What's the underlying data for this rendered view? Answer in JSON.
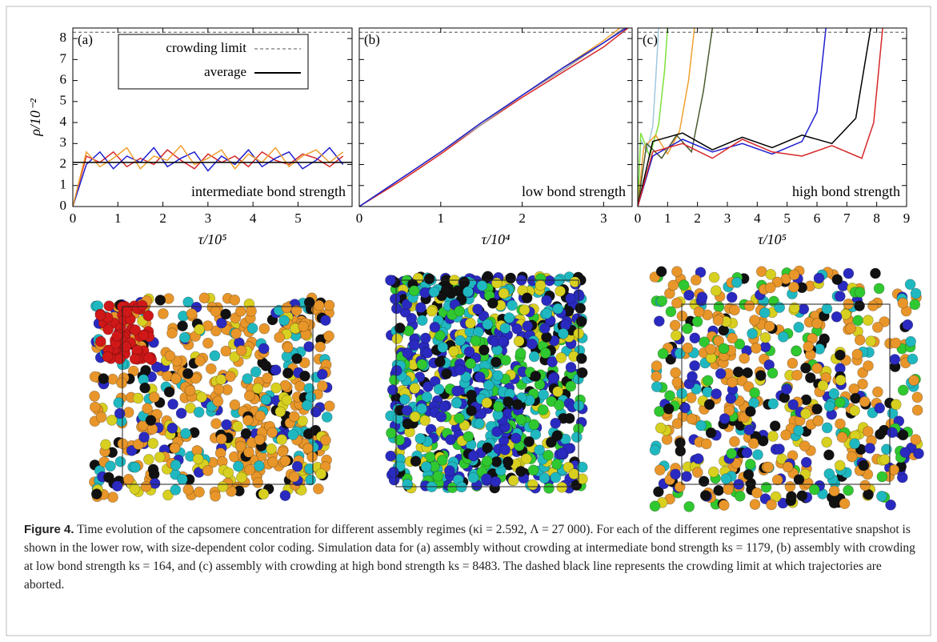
{
  "chart_data": [
    {
      "type": "line",
      "panel_label": "(a)",
      "annotation": "intermediate bond strength",
      "x_label": "τ/10⁵",
      "y_label": "ρ/10⁻²",
      "xlim": [
        0,
        6.2
      ],
      "ylim": [
        0,
        8.5
      ],
      "xticks": [
        0,
        1,
        2,
        3,
        4,
        5
      ],
      "yticks": [
        0,
        1,
        2,
        3,
        4,
        5,
        6,
        7,
        8
      ],
      "x": [
        0,
        0.3,
        0.6,
        0.9,
        1.2,
        1.5,
        1.8,
        2.1,
        2.4,
        2.7,
        3.0,
        3.3,
        3.6,
        3.9,
        4.2,
        4.5,
        4.8,
        5.1,
        5.4,
        5.7,
        6.0
      ],
      "series": [
        {
          "color": "#d62728",
          "values": [
            0,
            2.4,
            2.1,
            2.6,
            1.9,
            2.3,
            2.0,
            2.7,
            2.2,
            1.8,
            2.5,
            2.1,
            2.4,
            1.9,
            2.6,
            2.2,
            2.0,
            2.5,
            2.3,
            1.9,
            2.4
          ]
        },
        {
          "color": "#1f1fd0",
          "values": [
            0,
            2.0,
            2.6,
            1.8,
            2.4,
            2.1,
            2.8,
            1.9,
            2.3,
            2.6,
            1.7,
            2.4,
            2.0,
            2.7,
            1.9,
            2.3,
            2.6,
            1.8,
            2.2,
            2.8,
            2.0
          ]
        },
        {
          "color": "#f0a030",
          "values": [
            0,
            2.6,
            1.9,
            2.3,
            2.8,
            1.8,
            2.4,
            2.2,
            2.9,
            2.0,
            2.3,
            2.7,
            1.8,
            2.5,
            2.1,
            2.8,
            1.9,
            2.4,
            2.7,
            2.1,
            2.6
          ]
        },
        {
          "name": "crowding limit",
          "color": "#555555",
          "dash": true,
          "x": [
            0,
            6.2
          ],
          "values": [
            8.3,
            8.3
          ]
        },
        {
          "name": "average",
          "color": "#000000",
          "x": [
            0,
            6.2
          ],
          "values": [
            2.1,
            2.1
          ]
        }
      ]
    },
    {
      "type": "line",
      "panel_label": "(b)",
      "annotation": "low bond strength",
      "x_label": "τ/10⁴",
      "xlim": [
        0,
        3.35
      ],
      "ylim": [
        0,
        8.5
      ],
      "xticks": [
        0,
        1,
        2,
        3
      ],
      "series": [
        {
          "color": "#d62728",
          "x": [
            0,
            0.5,
            1,
            1.5,
            2,
            2.5,
            3,
            3.3
          ],
          "values": [
            0,
            1.2,
            2.5,
            3.9,
            5.2,
            6.4,
            7.6,
            8.5
          ]
        },
        {
          "color": "#f0a030",
          "x": [
            0,
            0.5,
            1,
            1.5,
            2,
            2.5,
            3,
            3.2
          ],
          "values": [
            0,
            1.3,
            2.6,
            4.0,
            5.3,
            6.6,
            7.9,
            8.5
          ]
        },
        {
          "color": "#999999",
          "x": [
            0,
            0.5,
            1,
            1.5,
            2,
            2.5,
            3,
            3.25
          ],
          "values": [
            0,
            1.3,
            2.6,
            3.9,
            5.3,
            6.5,
            7.8,
            8.5
          ]
        },
        {
          "color": "#1f1fd0",
          "x": [
            0,
            0.5,
            1,
            1.5,
            2,
            2.5,
            3,
            3.28
          ],
          "values": [
            0,
            1.3,
            2.6,
            4.0,
            5.3,
            6.6,
            7.8,
            8.5
          ]
        },
        {
          "color": "#555555",
          "dash": true,
          "x": [
            0,
            3.35
          ],
          "values": [
            8.3,
            8.3
          ]
        }
      ]
    },
    {
      "type": "line",
      "panel_label": "(c)",
      "annotation": "high bond strength",
      "x_label": "τ/10⁵",
      "xlim": [
        0,
        9
      ],
      "ylim": [
        0,
        8.5
      ],
      "xticks": [
        0,
        1,
        2,
        3,
        4,
        5,
        6,
        7,
        8,
        9
      ],
      "series": [
        {
          "color": "#a0c8e0",
          "x": [
            0,
            0.1,
            0.3,
            0.5,
            0.6,
            0.7
          ],
          "values": [
            0,
            3.2,
            2.6,
            3.8,
            6.0,
            8.5
          ]
        },
        {
          "color": "#7ee03a",
          "x": [
            0,
            0.1,
            0.4,
            0.7,
            0.9,
            1.0
          ],
          "values": [
            0,
            3.5,
            2.4,
            3.9,
            6.5,
            8.5
          ]
        },
        {
          "color": "#f0a030",
          "x": [
            0,
            0.2,
            0.6,
            1.0,
            1.4,
            1.7,
            1.9
          ],
          "values": [
            0,
            2.8,
            3.4,
            2.5,
            3.6,
            6.0,
            8.5
          ]
        },
        {
          "color": "#4a5a30",
          "x": [
            0,
            0.3,
            0.8,
            1.3,
            1.8,
            2.2,
            2.5
          ],
          "values": [
            0,
            3.0,
            2.3,
            3.4,
            2.6,
            5.5,
            8.5
          ]
        },
        {
          "color": "#1f1fd0",
          "x": [
            0,
            0.5,
            1.5,
            2.5,
            3.5,
            4.5,
            5.5,
            6.0,
            6.3
          ],
          "values": [
            0,
            2.4,
            3.2,
            2.6,
            3.0,
            2.5,
            3.1,
            4.5,
            8.5
          ]
        },
        {
          "color": "#000000",
          "x": [
            0,
            0.5,
            1.5,
            2.5,
            3.5,
            4.5,
            5.5,
            6.5,
            7.3,
            7.8
          ],
          "values": [
            0,
            3.1,
            3.5,
            2.7,
            3.3,
            2.8,
            3.4,
            3.0,
            4.2,
            8.5
          ]
        },
        {
          "color": "#d62728",
          "x": [
            0,
            0.5,
            1.5,
            2.5,
            3.5,
            4.5,
            5.5,
            6.5,
            7.5,
            7.9,
            8.2
          ],
          "values": [
            0,
            2.6,
            3.0,
            2.3,
            3.2,
            2.6,
            2.4,
            2.9,
            2.3,
            4.0,
            8.5
          ]
        },
        {
          "color": "#555555",
          "dash": true,
          "x": [
            0,
            9
          ],
          "values": [
            8.3,
            8.3
          ]
        }
      ]
    }
  ],
  "caption": {
    "label": "Figure 4.",
    "text": "Time evolution of the capsomere concentration for different assembly regimes (κi = 2.592, Λ = 27 000). For each of the different regimes one representative snapshot is shown in the lower row, with size-dependent color coding. Simulation data for (a) assembly without crowding at intermediate bond strength ks = 1179, (b) assembly with crowding at low bond strength ks = 164, and (c) assembly with crowding at high bond strength ks = 8483. The dashed black line represents the crowding limit at which trajectories are aborted."
  }
}
